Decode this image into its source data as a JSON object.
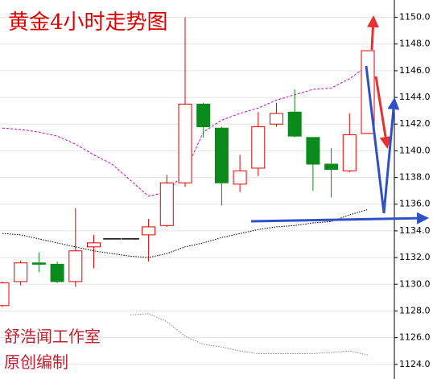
{
  "chart_data": {
    "type": "candlestick",
    "title": "黄金4小时走势图",
    "annotations": [
      "舒浩闻工作室",
      "原创编制"
    ],
    "categories": [
      null,
      null,
      null,
      null,
      null,
      null,
      null,
      null,
      null,
      null,
      null,
      null,
      null,
      null,
      null,
      null,
      null,
      null,
      null,
      null,
      null
    ],
    "open": [
      1128.4,
      1130.2,
      1131.6,
      1131.5,
      1130.2,
      1132.8,
      1133.4,
      1133.4,
      1133.7,
      1134.4,
      1137.6,
      1143.5,
      1141.7,
      1137.5,
      1138.7,
      1142.0,
      1142.9,
      1141.0,
      1139.0,
      1138.5,
      1141.3
    ],
    "high": [
      1130.2,
      1131.8,
      1132.4,
      1131.7,
      1135.7,
      1133.7,
      1133.4,
      1133.4,
      1134.9,
      1138.2,
      1150.0,
      1143.6,
      1141.8,
      1139.7,
      1142.9,
      1143.6,
      1144.6,
      1141.0,
      1140.2,
      1142.8,
      1147.5
    ],
    "low": [
      1128.3,
      1129.9,
      1130.9,
      1130.1,
      1129.8,
      1131.2,
      1133.4,
      1133.4,
      1131.7,
      1134.3,
      1137.3,
      1141.0,
      1135.9,
      1136.9,
      1138.1,
      1141.8,
      1141.0,
      1137.0,
      1136.5,
      1138.4,
      1141.3
    ],
    "close": [
      1130.1,
      1131.6,
      1131.5,
      1130.2,
      1132.5,
      1133.1,
      1133.4,
      1133.4,
      1134.3,
      1137.6,
      1143.5,
      1141.8,
      1137.6,
      1138.5,
      1141.8,
      1142.8,
      1141.1,
      1139.0,
      1138.6,
      1141.2,
      1147.5
    ],
    "up_color": "#e60000",
    "down_color": "#0a8a1a",
    "flat_color": "#000000",
    "series": [
      {
        "color": "#cc00cc",
        "style": "dashed",
        "values": [
          1141.7,
          1141.6,
          1141.4,
          1141.1,
          1140.5,
          1139.7,
          1139.0,
          1137.8,
          1136.6,
          1136.9,
          1138.4,
          1141.4,
          1142.3,
          1142.8,
          1143.2,
          1143.8,
          1144.2,
          1144.6,
          1144.7,
          1145.4,
          1146.4
        ]
      },
      {
        "color": "#000000",
        "style": "dotted",
        "values": [
          1133.8,
          1133.7,
          1133.4,
          1133.1,
          1132.8,
          1132.5,
          1132.3,
          1132.1,
          1132.0,
          1132.3,
          1132.8,
          1133.1,
          1133.5,
          1133.8,
          1134.1,
          1134.3,
          1134.4,
          1134.6,
          1134.7,
          1135.2,
          1135.6
        ]
      },
      {
        "color": "#888888",
        "style": "dotted",
        "values": [
          null,
          null,
          null,
          null,
          null,
          null,
          null,
          1127.7,
          1127.8,
          1127.2,
          1126.1,
          1125.5,
          1125.3,
          1125.0,
          1124.8,
          1124.8,
          1124.8,
          1124.8,
          1124.9,
          1125.0,
          1124.7
        ]
      }
    ],
    "ylim": [
      1122.9,
      1151.3
    ],
    "yticks": [
      {
        "value": 1124,
        "label": "1124.0"
      },
      {
        "value": 1126,
        "label": "1126.0"
      },
      {
        "value": 1128,
        "label": "1128.0"
      },
      {
        "value": 1130,
        "label": "1130.0"
      },
      {
        "value": 1132,
        "label": "1132.0"
      },
      {
        "value": 1134,
        "label": "1134.0"
      },
      {
        "value": 1136,
        "label": "1136.0"
      },
      {
        "value": 1138,
        "label": "1138.0"
      },
      {
        "value": 1140,
        "label": "1140.0"
      },
      {
        "value": 1142,
        "label": "1142.0"
      },
      {
        "value": 1144,
        "label": "1144.0"
      },
      {
        "value": 1146,
        "label": "1146.0"
      },
      {
        "value": 1148,
        "label": "1148.0"
      },
      {
        "value": 1150,
        "label": "1150.0"
      }
    ],
    "grid": true
  }
}
